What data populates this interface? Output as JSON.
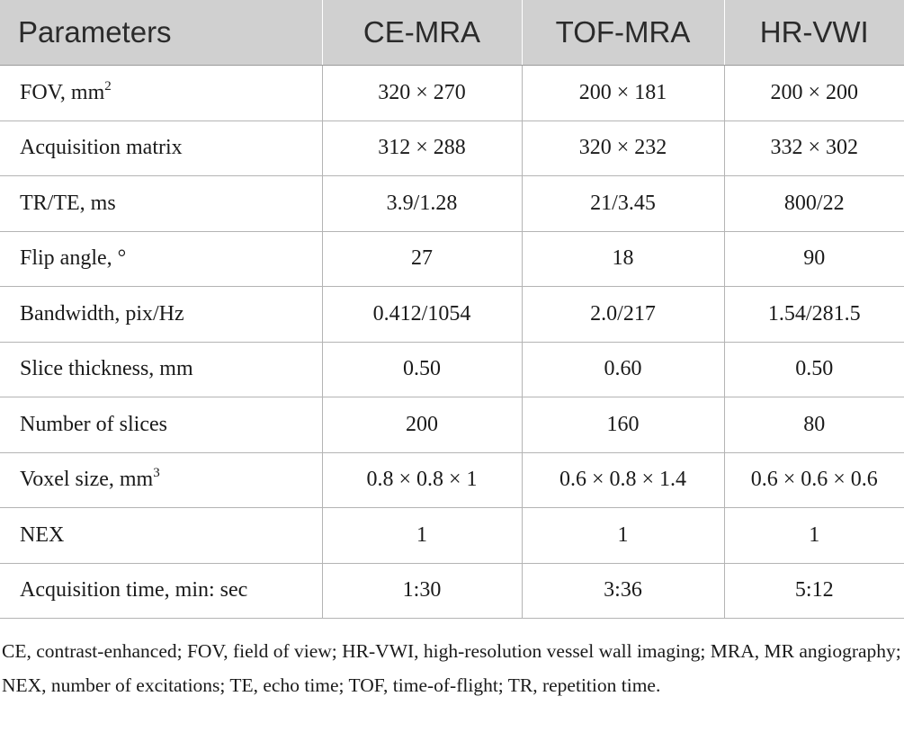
{
  "table": {
    "headers": [
      "Parameters",
      "CE-MRA",
      "TOF-MRA",
      "HR-VWI"
    ],
    "rows": [
      {
        "label": "FOV, mm",
        "sup": "2",
        "values": [
          "320 × 270",
          "200 × 181",
          "200 × 200"
        ]
      },
      {
        "label": "Acquisition matrix",
        "sup": "",
        "values": [
          "312 × 288",
          "320 × 232",
          "332 × 302"
        ]
      },
      {
        "label": "TR/TE, ms",
        "sup": "",
        "values": [
          "3.9/1.28",
          "21/3.45",
          "800/22"
        ]
      },
      {
        "label": "Flip angle, °",
        "sup": "",
        "values": [
          "27",
          "18",
          "90"
        ]
      },
      {
        "label": "Bandwidth, pix/Hz",
        "sup": "",
        "values": [
          "0.412/1054",
          "2.0/217",
          "1.54/281.5"
        ]
      },
      {
        "label": "Slice thickness, mm",
        "sup": "",
        "values": [
          "0.50",
          "0.60",
          "0.50"
        ]
      },
      {
        "label": "Number of slices",
        "sup": "",
        "values": [
          "200",
          "160",
          "80"
        ]
      },
      {
        "label": "Voxel size, mm",
        "sup": "3",
        "values": [
          "0.8 × 0.8 × 1",
          "0.6 × 0.8 × 1.4",
          "0.6 × 0.6 × 0.6"
        ]
      },
      {
        "label": "NEX",
        "sup": "",
        "values": [
          "1",
          "1",
          "1"
        ]
      },
      {
        "label": "Acquisition time, min: sec",
        "sup": "",
        "values": [
          "1:30",
          "3:36",
          "5:12"
        ]
      }
    ]
  },
  "footnote": "CE, contrast-enhanced; FOV, field of view; HR-VWI, high-resolution vessel wall imaging; MRA, MR angiography; NEX, number of excitations; TE, echo time; TOF, time-of-flight; TR, repetition time."
}
